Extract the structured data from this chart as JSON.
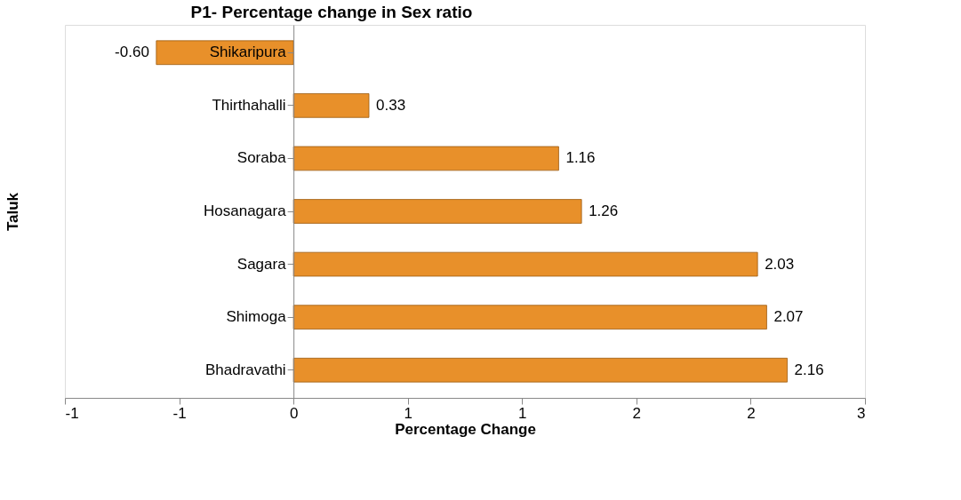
{
  "chart_data": {
    "type": "bar",
    "orientation": "horizontal",
    "title": "P1- Percentage change in  Sex ratio",
    "xlabel": "Percentage Change",
    "ylabel": "Taluk",
    "categories": [
      "Shikaripura",
      "Thirthahalli",
      "Soraba",
      "Hosanagara",
      "Sagara",
      "Shimoga",
      "Bhadravathi"
    ],
    "values": [
      -0.6,
      0.33,
      1.16,
      1.26,
      2.03,
      2.07,
      2.16
    ],
    "value_labels": [
      "-0.60",
      "0.33",
      "1.16",
      "1.26",
      "2.03",
      "2.07",
      "2.16"
    ],
    "color": "#e8902a",
    "xlim": [
      -1,
      2.5
    ],
    "xticks": [
      {
        "value": -1,
        "label": "-1"
      },
      {
        "value": -0.5,
        "label": "-1"
      },
      {
        "value": 0,
        "label": "0"
      },
      {
        "value": 0.5,
        "label": "1"
      },
      {
        "value": 1,
        "label": "1"
      },
      {
        "value": 1.5,
        "label": "2"
      },
      {
        "value": 2,
        "label": "2"
      },
      {
        "value": 2.5,
        "label": "3"
      }
    ],
    "grid": false
  }
}
